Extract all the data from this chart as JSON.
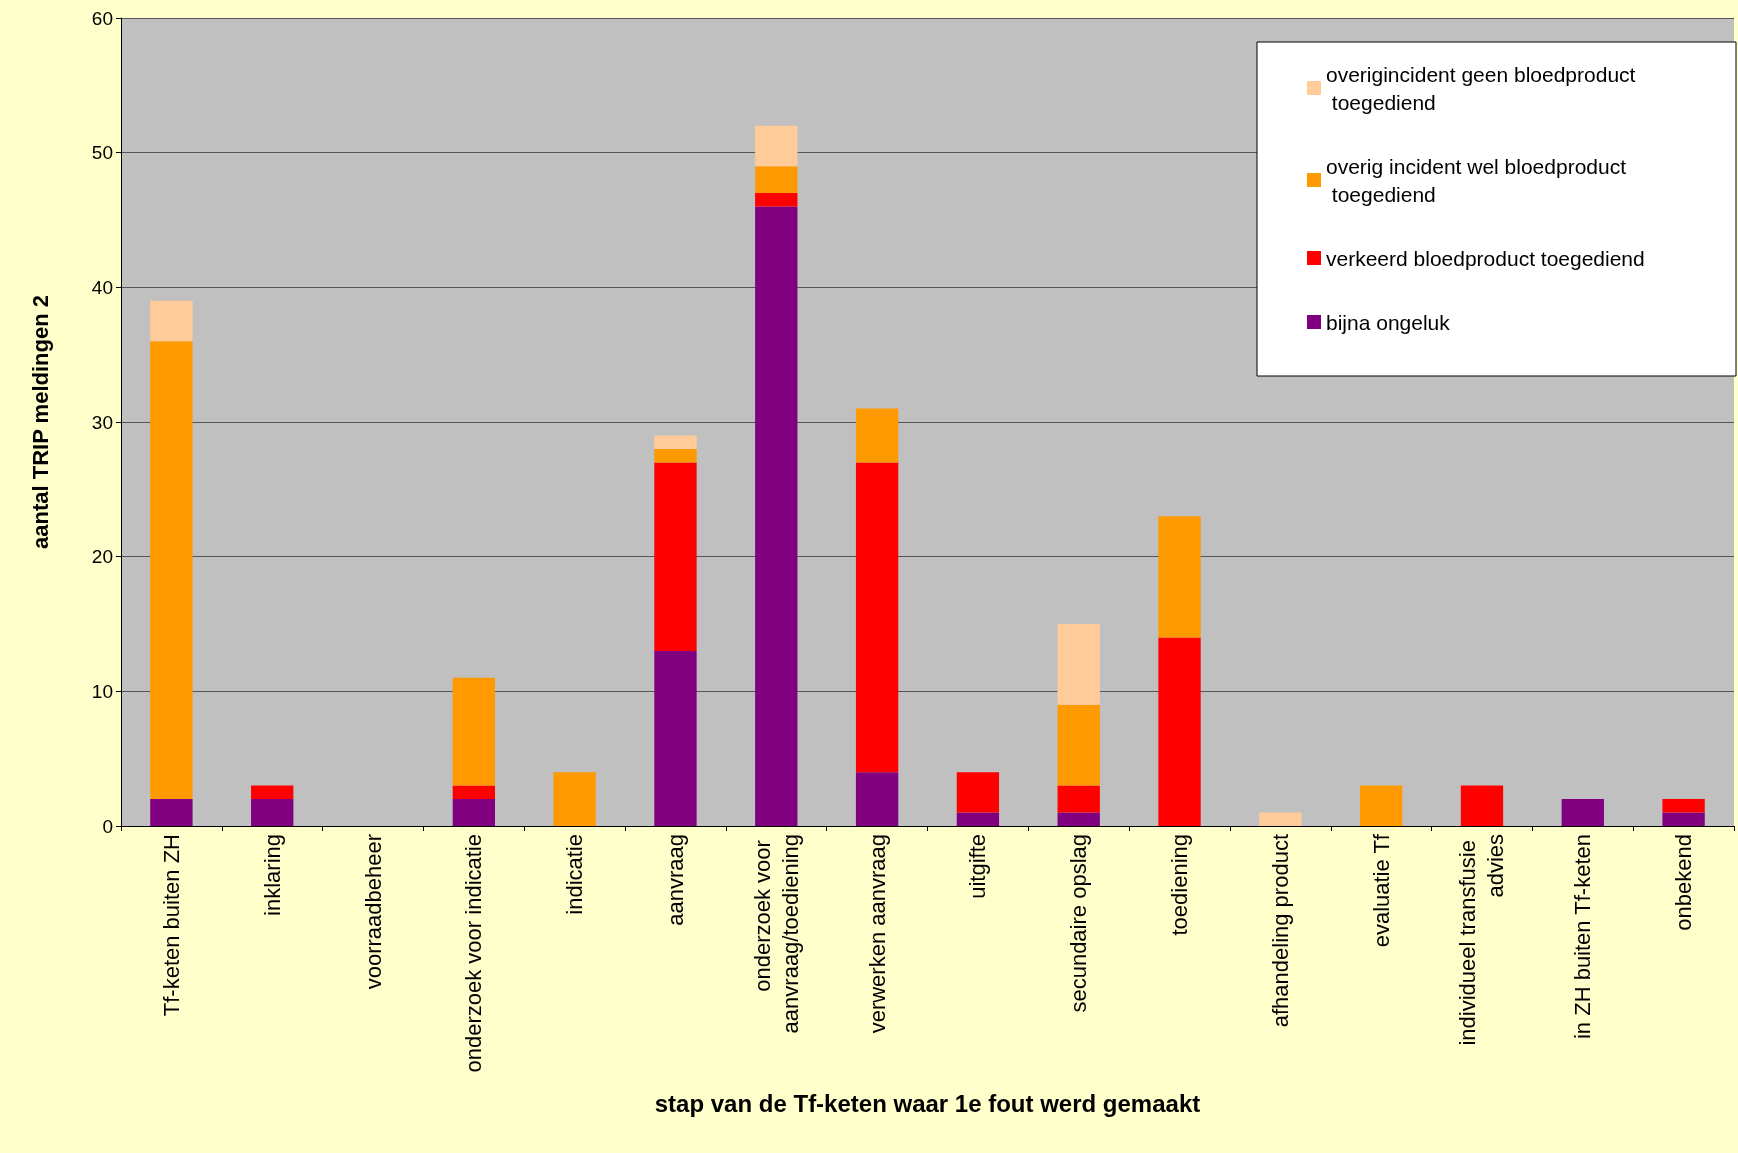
{
  "chart_data": {
    "type": "bar",
    "stacked": true,
    "xlabel": "stap van de Tf-keten waar 1e fout werd gemaakt",
    "ylabel": "aantal TRIP meldingen 2",
    "categories": [
      "Tf-keten buiten ZH",
      "inklaring",
      "voorraadbeheer",
      "onderzoek voor indicatie",
      "indicatie",
      "aanvraag",
      "onderzoek voor aanvraag/toediening",
      "verwerken aanvraag",
      "uitgifte",
      "secundaire opslag",
      "toediening",
      "afhandeling product",
      "evaluatie Tf",
      "individueel transfusie advies",
      "in ZH buiten Tf-keten",
      "onbekend"
    ],
    "series": [
      {
        "name": "bijna ongeluk",
        "color": "#800080",
        "values": [
          2,
          2,
          0,
          2,
          0,
          13,
          46,
          4,
          1,
          1,
          0,
          0,
          0,
          0,
          2,
          1
        ]
      },
      {
        "name": "verkeerd bloedproduct toegediend",
        "color": "#ff0000",
        "values": [
          0,
          1,
          0,
          1,
          0,
          14,
          1,
          23,
          3,
          2,
          14,
          0,
          0,
          3,
          0,
          1
        ]
      },
      {
        "name": "overig incident wel bloedproduct toegediend",
        "color": "#ff9900",
        "values": [
          34,
          0,
          0,
          8,
          4,
          1,
          2,
          4,
          0,
          6,
          9,
          0,
          3,
          0,
          0,
          0
        ]
      },
      {
        "name": "overigincident geen bloedproduct toegediend",
        "color": "#ffcc99",
        "values": [
          3,
          0,
          0,
          0,
          0,
          1,
          3,
          0,
          0,
          6,
          0,
          1,
          0,
          0,
          0,
          0
        ]
      }
    ],
    "ylim": [
      0,
      60
    ],
    "yticks": [
      0,
      10,
      20,
      30,
      40,
      50,
      60
    ],
    "grid": "y",
    "legend": "top right"
  }
}
